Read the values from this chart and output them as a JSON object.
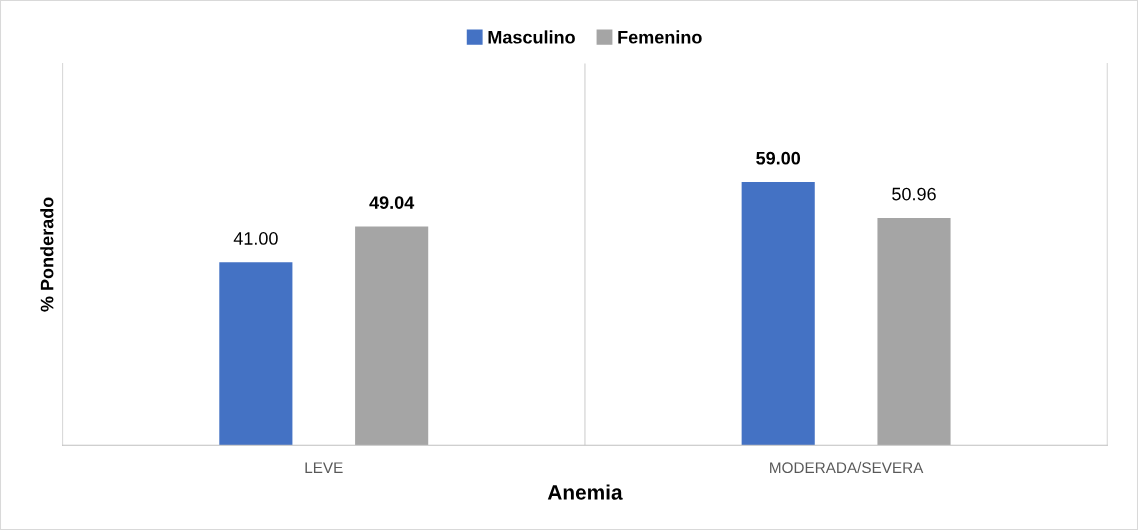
{
  "chart_data": {
    "type": "bar",
    "xlabel": "Anemia",
    "ylabel": "% Ponderado",
    "categories": [
      "LEVE",
      "MODERADA/SEVERA"
    ],
    "series": [
      {
        "name": "Masculino",
        "color": "#4472c4",
        "values": [
          41.0,
          59.0
        ],
        "value_labels": [
          "41.00",
          "59.00"
        ]
      },
      {
        "name": "Femenino",
        "color": "#a5a5a5",
        "values": [
          49.04,
          50.96
        ],
        "value_labels": [
          "49.04",
          "50.96"
        ]
      }
    ],
    "legend": "top",
    "tick_labels": "x"
  }
}
